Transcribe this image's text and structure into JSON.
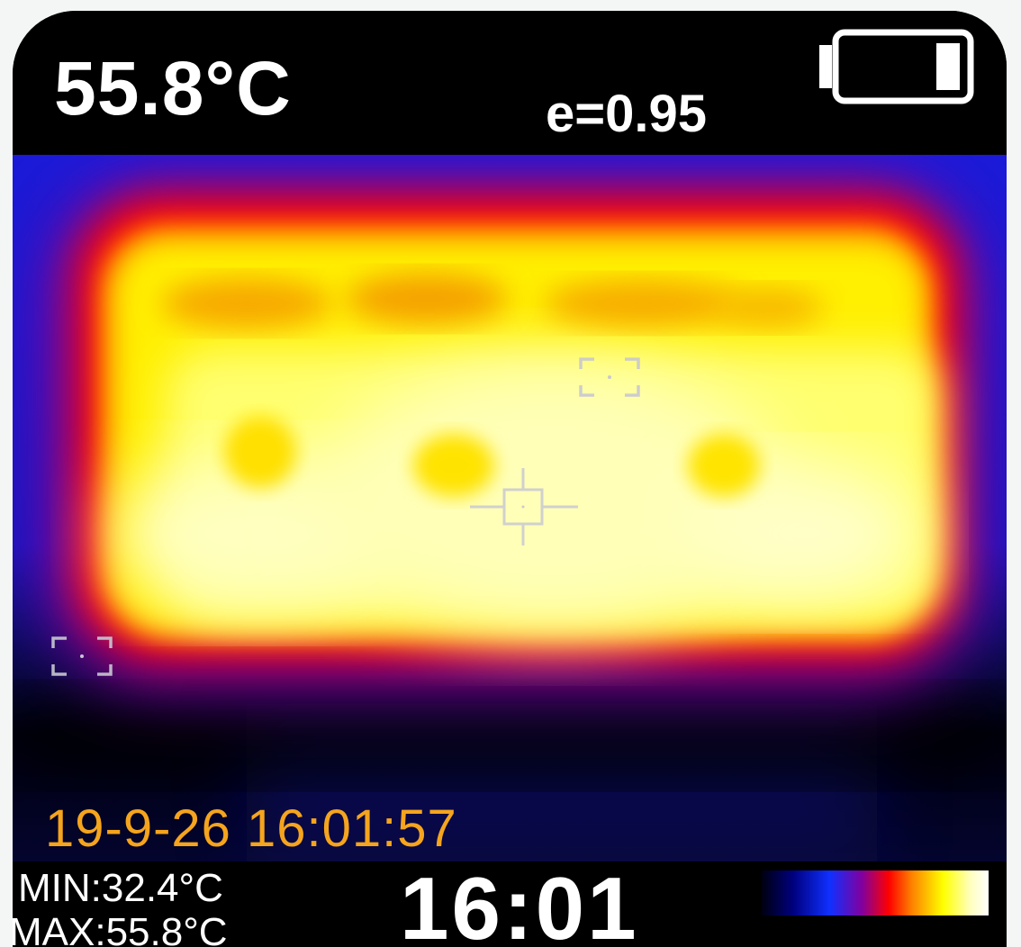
{
  "header": {
    "main_temperature": "55.8°C",
    "emissivity": "e=0.95",
    "battery_icon": "battery-icon"
  },
  "overlay": {
    "timestamp": "19-9-26 16:01:57",
    "icons": [
      "center-crosshair-icon",
      "hot-spot-marker-icon",
      "cold-spot-marker-icon"
    ]
  },
  "footer": {
    "min_label": "MIN:32.4°C",
    "max_label": "MAX:55.8°C",
    "clock": "16:01",
    "palette": "ironbow-color-scale"
  },
  "colors": {
    "background": "#000000",
    "text": "#ffffff",
    "timestamp": "#f5a41d",
    "marker": "#c8c8d2"
  }
}
